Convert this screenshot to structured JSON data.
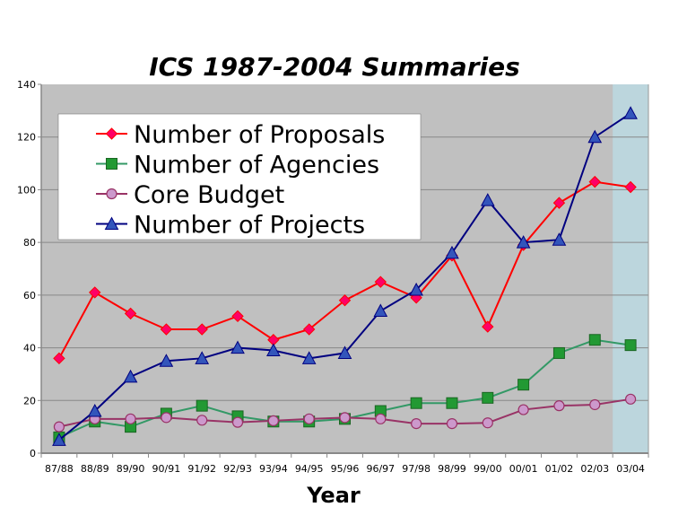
{
  "chart_data": {
    "type": "line",
    "title": "ICS 1987-2004 Summaries",
    "xlabel": "Year",
    "ylabel": "",
    "ylim": [
      0,
      140
    ],
    "yticks": [
      0,
      20,
      40,
      60,
      80,
      100,
      120,
      140
    ],
    "categories": [
      "87/88",
      "88/89",
      "89/90",
      "90/91",
      "91/92",
      "92/93",
      "93/94",
      "94/95",
      "95/96",
      "96/97",
      "97/98",
      "98/99",
      "99/00",
      "00/01",
      "01/02",
      "02/03",
      "03/04"
    ],
    "highlight_category": "03/04",
    "grid": true,
    "legend_position": "top-left",
    "series": [
      {
        "name": "Number of Proposals",
        "color": "#ff0000",
        "marker": "diamond",
        "marker_color": "#ff0066",
        "values": [
          36,
          61,
          53,
          47,
          47,
          52,
          43,
          47,
          58,
          65,
          59,
          75,
          48,
          79,
          95,
          103,
          101
        ]
      },
      {
        "name": "Number of Agencies",
        "color": "#339966",
        "marker": "square",
        "marker_color": "#229933",
        "values": [
          6,
          12,
          10,
          15,
          18,
          14,
          12,
          12,
          13,
          16,
          19,
          19,
          21,
          26,
          38,
          43,
          41
        ]
      },
      {
        "name": "Core Budget",
        "color": "#993366",
        "marker": "circle",
        "marker_color": "#cc99cc",
        "values": [
          10,
          13,
          13,
          13.5,
          12.5,
          11.7,
          12.3,
          13,
          13.5,
          13,
          11.2,
          11.2,
          11.5,
          16.5,
          18,
          18.4,
          20.5
        ]
      },
      {
        "name": "Number of Projects",
        "color": "#000080",
        "marker": "triangle",
        "marker_color": "#3355bb",
        "values": [
          5,
          16,
          29,
          35,
          36,
          40,
          39,
          36,
          38,
          54,
          62,
          76,
          96,
          80,
          81,
          120,
          129
        ]
      }
    ]
  }
}
